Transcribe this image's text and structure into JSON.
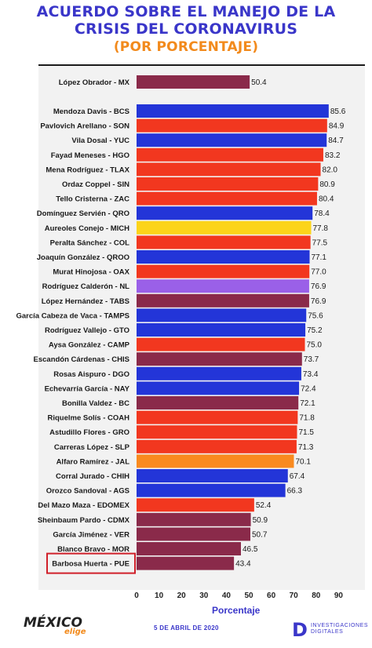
{
  "header": {
    "title_line1": "ACUERDO SOBRE EL MANEJO DE LA",
    "title_line2": "CRISIS DEL CORONAVIRUS",
    "subtitle": "(POR PORCENTAJE)"
  },
  "footer": {
    "brand_left": "MÉXICO",
    "brand_left_sub": "elige",
    "date": "5 DE ABRIL DE 2020",
    "brand_right_mark": "D",
    "brand_right_line1": "INVESTIGACIONES",
    "brand_right_line2": "DIGITALES"
  },
  "colors": {
    "blue": "#2335d8",
    "red": "#f2371f",
    "maroon": "#8a2a4a",
    "yellow": "#fcd41a",
    "purple": "#9a60e8",
    "orange": "#f98a1f",
    "highlight_box": "#d0202a",
    "title_blue": "#3a36c9",
    "subtitle_orange": "#f28a1c"
  },
  "chart_data": {
    "type": "bar",
    "orientation": "horizontal",
    "xlabel": "Porcentaje",
    "xlim": [
      0,
      90
    ],
    "xticks": [
      0,
      10,
      20,
      30,
      40,
      50,
      60,
      70,
      80,
      90
    ],
    "highlighted": "Barbosa Huerta - PUE",
    "categories": [
      "López Obrador - MX",
      "Mendoza Davis - BCS",
      "Pavlovich Arellano - SON",
      "Vila Dosal - YUC",
      "Fayad Meneses - HGO",
      "Mena Rodríguez - TLAX",
      "Ordaz Coppel - SIN",
      "Tello Cristerna - ZAC",
      "Domínguez Servién - QRO",
      "Aureoles Conejo - MICH",
      "Peralta Sánchez - COL",
      "Joaquín González - QROO",
      "Murat Hinojosa - OAX",
      "Rodríguez Calderón - NL",
      "López Hernández - TABS",
      "García Cabeza de Vaca - TAMPS",
      "Rodríguez Vallejo - GTO",
      "Aysa González - CAMP",
      "Escandón Cárdenas - CHIS",
      "Rosas Aispuro - DGO",
      "Echevarría García - NAY",
      "Bonilla Valdez - BC",
      "Riquelme Solís - COAH",
      "Astudillo Flores - GRO",
      "Carreras López - SLP",
      "Alfaro Ramírez - JAL",
      "Corral Jurado - CHIH",
      "Orozco Sandoval - AGS",
      "Del Mazo Maza - EDOMEX",
      "Sheinbaum Pardo - CDMX",
      "García Jiménez - VER",
      "Blanco Bravo - MOR",
      "Barbosa Huerta - PUE"
    ],
    "values": [
      50.4,
      85.6,
      84.9,
      84.7,
      83.2,
      82.0,
      80.9,
      80.4,
      78.4,
      77.8,
      77.5,
      77.1,
      77.0,
      76.9,
      76.9,
      75.6,
      75.2,
      75.0,
      73.7,
      73.4,
      72.4,
      72.1,
      71.8,
      71.5,
      71.3,
      70.1,
      67.4,
      66.3,
      52.4,
      50.9,
      50.7,
      46.5,
      43.4
    ],
    "value_labels": [
      "50.4",
      "85.6",
      "84.9",
      "84.7",
      "83.2",
      "82.0",
      "80.9",
      "80.4",
      "78.4",
      "77.8",
      "77.5",
      "77.1",
      "77.0",
      "76.9",
      "76.9",
      "75.6",
      "75.2",
      "75.0",
      "73.7",
      "73.4",
      "72.4",
      "72.1",
      "71.8",
      "71.5",
      "71.3",
      "70.1",
      "67.4",
      "66.3",
      "52.4",
      "50.9",
      "50.7",
      "46.5",
      "43.4"
    ],
    "bar_colors": [
      "maroon",
      "blue",
      "red",
      "blue",
      "red",
      "red",
      "red",
      "red",
      "blue",
      "yellow",
      "red",
      "blue",
      "red",
      "purple",
      "maroon",
      "blue",
      "blue",
      "red",
      "maroon",
      "blue",
      "blue",
      "maroon",
      "red",
      "red",
      "red",
      "orange",
      "blue",
      "blue",
      "red",
      "maroon",
      "maroon",
      "maroon",
      "maroon"
    ]
  }
}
